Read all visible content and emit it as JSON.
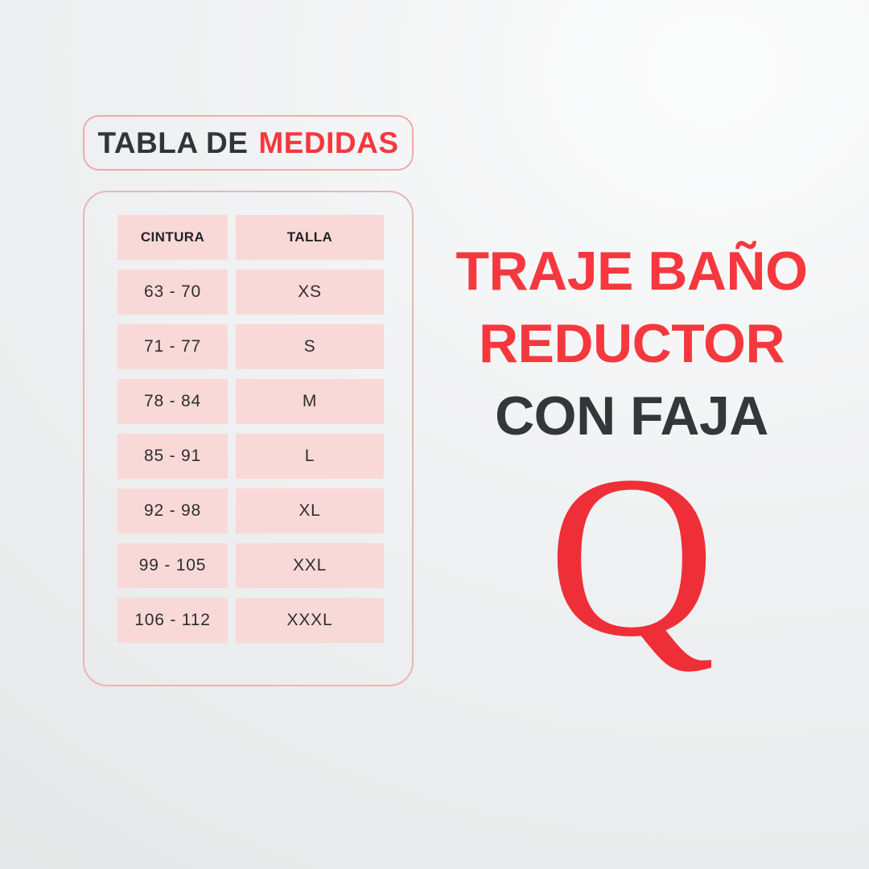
{
  "size_chart": {
    "title_prefix": "TABLA DE",
    "title_highlight": "MEDIDAS",
    "columns": [
      "CINTURA",
      "TALLA"
    ],
    "rows": [
      {
        "cintura": "63 - 70",
        "talla": "XS"
      },
      {
        "cintura": "71 - 77",
        "talla": "S"
      },
      {
        "cintura": "78 - 84",
        "talla": "M"
      },
      {
        "cintura": "85 - 91",
        "talla": "L"
      },
      {
        "cintura": "92 - 98",
        "talla": "XL"
      },
      {
        "cintura": "99 - 105",
        "talla": "XXL"
      },
      {
        "cintura": "106 - 112",
        "talla": "XXXL"
      }
    ]
  },
  "product": {
    "title_line1": "TRAJE BAÑO",
    "title_line2": "REDUCTOR",
    "subtitle": "CON FAJA",
    "logo_letter": "Q"
  },
  "colors": {
    "accent_red": "#f5383e",
    "logo_red": "#ee2f38",
    "dark_text": "#35363a",
    "cell_pink": "#f9d9d7",
    "border_pink": "#e7b7b3",
    "background": "#eceeef"
  },
  "chart_data": {
    "type": "table",
    "title": "TABLA DE MEDIDAS",
    "columns": [
      "CINTURA",
      "TALLA"
    ],
    "rows": [
      [
        "63 - 70",
        "XS"
      ],
      [
        "71 - 77",
        "S"
      ],
      [
        "78 - 84",
        "M"
      ],
      [
        "85 - 91",
        "L"
      ],
      [
        "92 - 98",
        "XL"
      ],
      [
        "99 - 105",
        "XXL"
      ],
      [
        "106 - 112",
        "XXXL"
      ]
    ]
  }
}
